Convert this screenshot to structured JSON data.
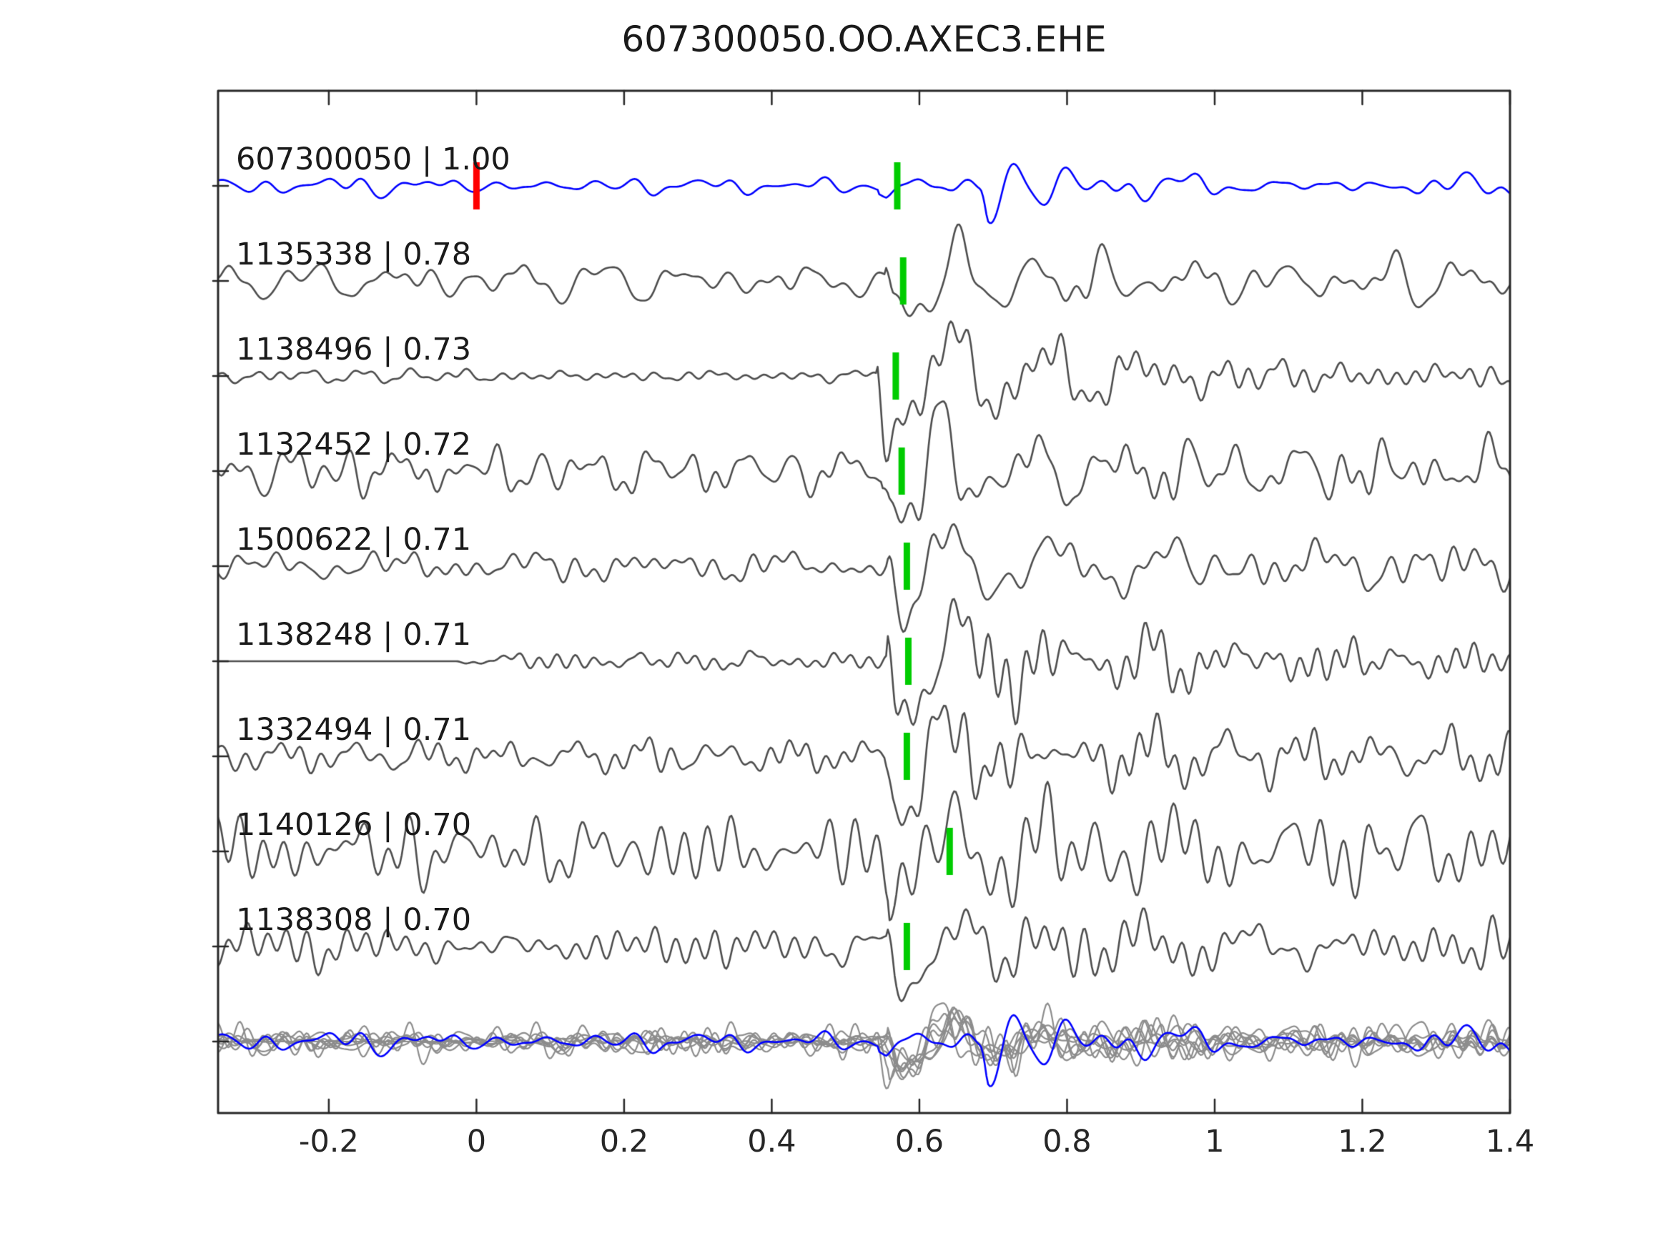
{
  "title": "607300050.OO.AXEC3.EHE",
  "colors": {
    "target_trace": "#0000ff",
    "template_trace": "#4d4d4d",
    "overlay_trace": "#8c8c8c",
    "pick_marker": "#00cc00",
    "origin_marker": "#ff0000",
    "axis": "#262626",
    "text": "#1a1a1a"
  },
  "chart_data": {
    "type": "line",
    "title": "607300050.OO.AXEC3.EHE",
    "xlabel": "",
    "ylabel": "",
    "xlim": [
      -0.35,
      1.4
    ],
    "grid": false,
    "legend": false,
    "x_ticks": [
      {
        "v": -0.2,
        "label": "-0.2"
      },
      {
        "v": 0,
        "label": "0"
      },
      {
        "v": 0.2,
        "label": "0.2"
      },
      {
        "v": 0.4,
        "label": "0.4"
      },
      {
        "v": 0.6,
        "label": "0.6"
      },
      {
        "v": 0.8,
        "label": "0.8"
      },
      {
        "v": 1,
        "label": "1"
      },
      {
        "v": 1.2,
        "label": "1.2"
      },
      {
        "v": 1.4,
        "label": "1.4"
      }
    ],
    "traces": [
      {
        "label": "607300050 | 1.00",
        "id": "607300050",
        "correlation": 1.0,
        "role": "target",
        "color": "#0000ff",
        "pick_time": 0.57,
        "origin_marker": {
          "time": 0.0,
          "color": "#ff0000"
        },
        "synth": {
          "seed": 101,
          "pre": 10,
          "post": 18,
          "flat_until": null,
          "events": [
            {
              "t0": 0.545,
              "f": 9.5,
              "amp": 16,
              "tau": 0.07
            },
            {
              "t0": 0.682,
              "f": 14.5,
              "amp": 60,
              "tau": 0.1
            }
          ]
        }
      },
      {
        "label": "1135338 | 0.78",
        "id": "1135338",
        "correlation": 0.78,
        "role": "template",
        "color": "#4d4d4d",
        "pick_time": 0.578,
        "synth": {
          "seed": 202,
          "pre": 24,
          "post": 52,
          "flat_until": null,
          "events": [
            {
              "t0": 0.553,
              "f": 8.5,
              "amp": 95,
              "tau": 0.16
            }
          ]
        }
      },
      {
        "label": "1138496 | 0.73",
        "id": "1138496",
        "correlation": 0.73,
        "role": "template",
        "color": "#4d4d4d",
        "pick_time": 0.568,
        "synth": {
          "seed": 303,
          "pre": 8,
          "post": 55,
          "flat_until": null,
          "events": [
            {
              "t0": 0.542,
              "f": 7.5,
              "amp": 100,
              "tau": 0.2
            }
          ]
        }
      },
      {
        "label": "1132452 | 0.72",
        "id": "1132452",
        "correlation": 0.72,
        "role": "template",
        "color": "#4d4d4d",
        "pick_time": 0.576,
        "synth": {
          "seed": 404,
          "pre": 34,
          "post": 48,
          "flat_until": null,
          "events": [
            {
              "t0": 0.55,
              "f": 9.0,
              "amp": 80,
              "tau": 0.14
            }
          ]
        }
      },
      {
        "label": "1500622 | 0.71",
        "id": "1500622",
        "correlation": 0.71,
        "role": "template",
        "color": "#4d4d4d",
        "pick_time": 0.583,
        "synth": {
          "seed": 505,
          "pre": 22,
          "post": 46,
          "flat_until": null,
          "events": [
            {
              "t0": 0.556,
              "f": 7.7,
              "amp": 90,
              "tau": 0.16
            }
          ]
        }
      },
      {
        "label": "1138248 | 0.71",
        "id": "1138248",
        "correlation": 0.71,
        "role": "template",
        "color": "#4d4d4d",
        "pick_time": 0.585,
        "synth": {
          "seed": 606,
          "pre": 13,
          "post": 55,
          "flat_until": -0.03,
          "events": [
            {
              "t0": 0.556,
              "f": 7.5,
              "amp": 92,
              "tau": 0.2
            }
          ]
        }
      },
      {
        "label": "1332494 | 0.71",
        "id": "1332494",
        "correlation": 0.71,
        "role": "template",
        "color": "#4d4d4d",
        "pick_time": 0.583,
        "synth": {
          "seed": 707,
          "pre": 22,
          "post": 48,
          "flat_until": null,
          "events": [
            {
              "t0": 0.554,
              "f": 8.0,
              "amp": 82,
              "tau": 0.16
            }
          ]
        }
      },
      {
        "label": "1140126 | 0.70",
        "id": "1140126",
        "correlation": 0.7,
        "role": "template",
        "color": "#4d4d4d",
        "pick_time": 0.641,
        "synth": {
          "seed": 808,
          "pre": 52,
          "post": 60,
          "flat_until": null,
          "events": [
            {
              "t0": 0.558,
              "f": 9.0,
              "amp": 80,
              "tau": 0.1
            }
          ]
        }
      },
      {
        "label": "1138308 | 0.70",
        "id": "1138308",
        "correlation": 0.7,
        "role": "template",
        "color": "#4d4d4d",
        "pick_time": 0.583,
        "synth": {
          "seed": 909,
          "pre": 26,
          "post": 40,
          "flat_until": null,
          "events": [
            {
              "t0": 0.556,
              "f": 8.0,
              "amp": 85,
              "tau": 0.17
            }
          ]
        }
      }
    ],
    "overlay_row": {
      "description": "all template traces overlaid in gray with the blue target trace on top",
      "template_color": "#8c8c8c",
      "target_color": "#0000ff",
      "template_scale": 0.55,
      "target_scale": 1.2
    },
    "pick_marker_color": "#00cc00",
    "origin_marker_color": "#ff0000"
  }
}
